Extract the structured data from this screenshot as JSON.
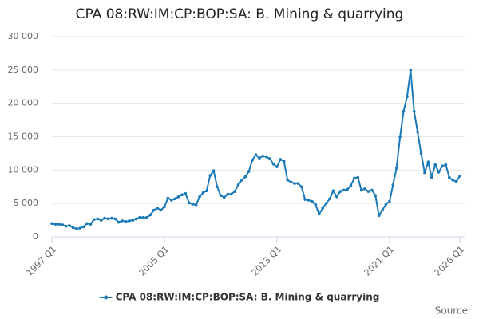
{
  "chart_data": {
    "type": "line",
    "title": "CPA 08:RW:IM:CP:BOP:SA: B. Mining & quarrying",
    "source": "Source:",
    "categories": [
      "1997 Q1",
      null,
      null,
      null,
      null,
      null,
      null,
      null,
      null,
      null,
      null,
      null,
      null,
      null,
      null,
      null,
      null,
      null,
      null,
      null,
      null,
      null,
      null,
      null,
      null,
      null,
      null,
      null,
      null,
      null,
      null,
      null,
      "2005 Q1",
      null,
      null,
      null,
      null,
      null,
      null,
      null,
      null,
      null,
      null,
      null,
      null,
      null,
      null,
      null,
      null,
      null,
      null,
      null,
      null,
      null,
      null,
      null,
      null,
      null,
      null,
      null,
      null,
      null,
      null,
      null,
      "2013 Q1",
      null,
      null,
      null,
      null,
      null,
      null,
      null,
      null,
      null,
      null,
      null,
      null,
      null,
      null,
      null,
      null,
      null,
      null,
      null,
      null,
      null,
      null,
      null,
      null,
      null,
      null,
      null,
      null,
      null,
      null,
      null,
      "2021 Q1",
      null,
      null,
      null,
      null,
      null,
      null,
      null,
      null,
      null,
      null,
      null,
      null,
      null,
      null,
      null,
      null,
      null,
      null,
      null,
      "2026 Q1"
    ],
    "series": [
      {
        "name": "CPA 08:RW:IM:CP:BOP:SA: B. Mining & quarrying",
        "color": "#1a7ab8",
        "values": [
          2000,
          1900,
          1900,
          1800,
          1600,
          1700,
          1400,
          1200,
          1300,
          1500,
          2000,
          1900,
          2600,
          2700,
          2500,
          2800,
          2700,
          2800,
          2700,
          2200,
          2400,
          2300,
          2400,
          2500,
          2700,
          2900,
          2900,
          2900,
          3300,
          4000,
          4300,
          4000,
          4500,
          5800,
          5500,
          5700,
          6000,
          6300,
          6500,
          5100,
          4900,
          4800,
          6000,
          6600,
          6900,
          9200,
          9900,
          7500,
          6200,
          5900,
          6400,
          6400,
          6800,
          7800,
          8500,
          9000,
          9800,
          11500,
          12300,
          11800,
          12100,
          12000,
          11700,
          10900,
          10500,
          11600,
          11300,
          8500,
          8200,
          8000,
          8000,
          7500,
          5600,
          5500,
          5300,
          4800,
          3400,
          4300,
          5000,
          5700,
          6900,
          6000,
          6800,
          7000,
          7100,
          7700,
          8800,
          8900,
          7000,
          7200,
          6800,
          7000,
          6200,
          3200,
          4000,
          4900,
          5300,
          7800,
          10300,
          15000,
          18800,
          21000,
          25000,
          18800,
          15700,
          12500,
          9600,
          11200,
          8900,
          10800,
          9700,
          10600,
          10800,
          8900,
          8500,
          8300,
          9100
        ]
      }
    ],
    "ylim": [
      0,
      30000
    ],
    "yticks": [
      0,
      {
        "value": 5000,
        "label": "5 000"
      },
      {
        "value": 10000,
        "label": "10 000"
      },
      {
        "value": 15000,
        "label": "15 000"
      },
      {
        "value": 20000,
        "label": "20 000"
      },
      {
        "value": 25000,
        "label": "25 000"
      },
      {
        "value": 30000,
        "label": "30 000"
      }
    ],
    "grid": true,
    "legend": "bottom"
  }
}
